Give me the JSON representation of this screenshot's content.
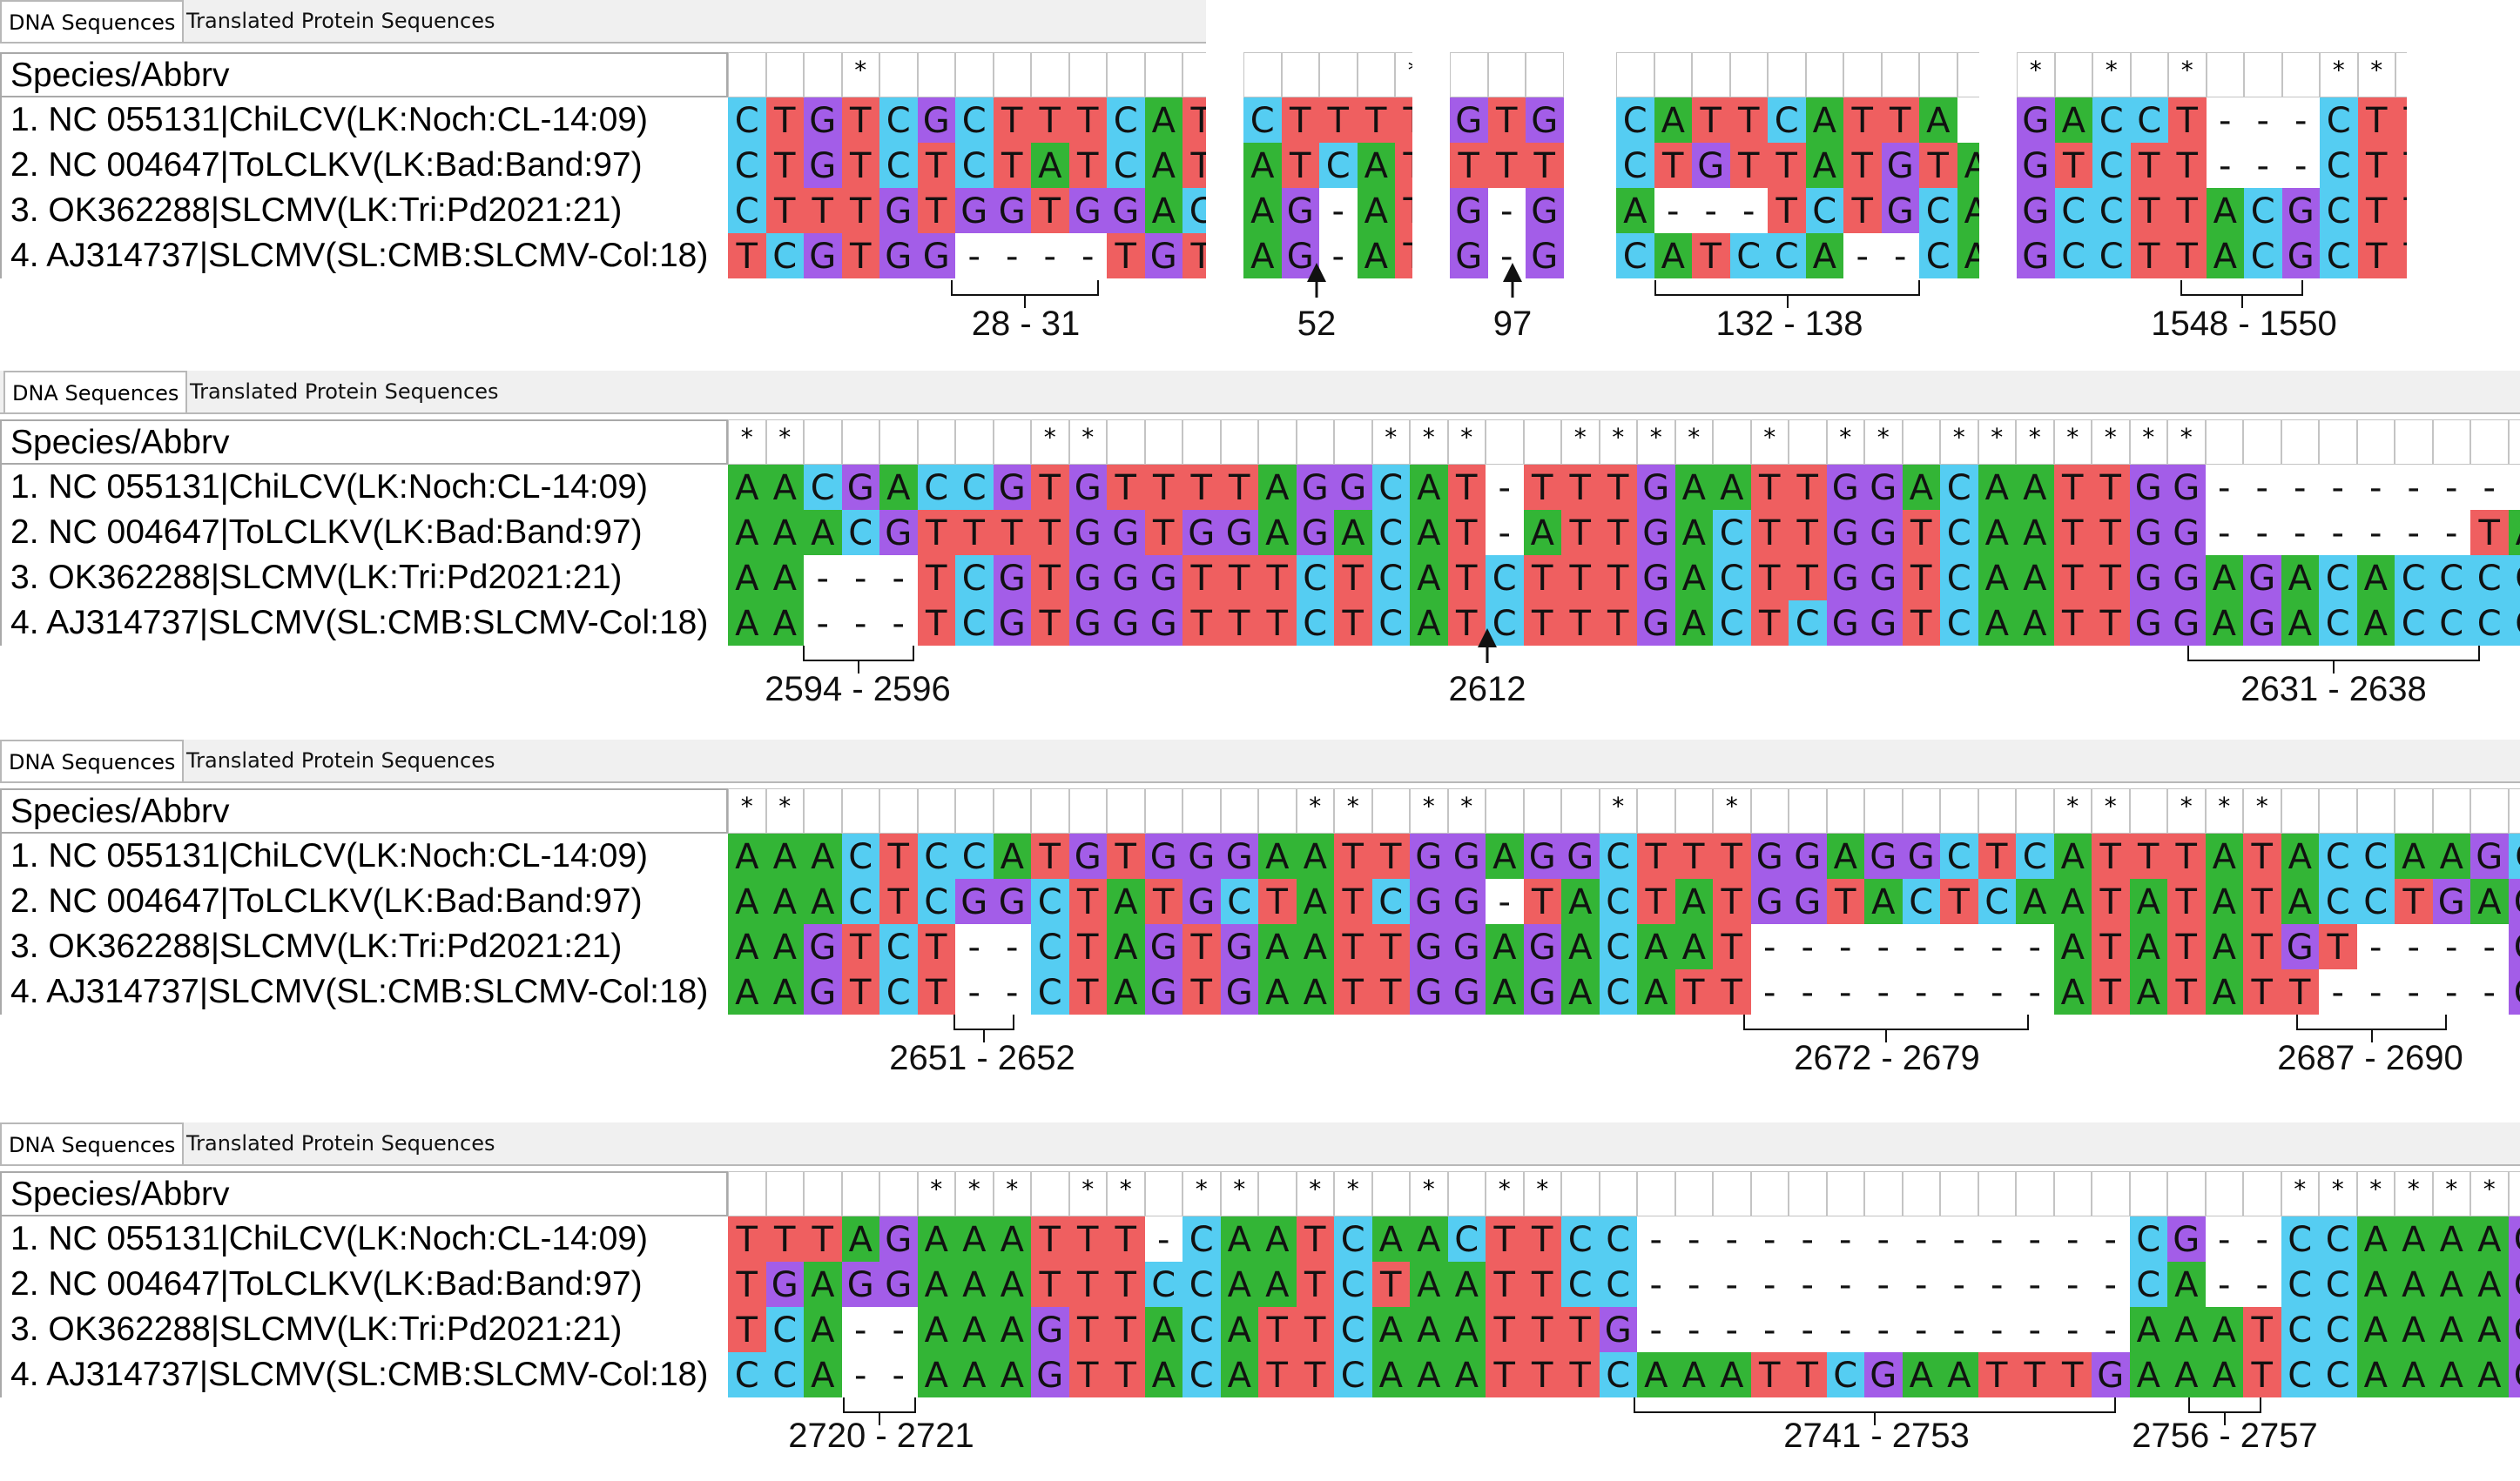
{
  "tabs": {
    "dna": "DNA Sequences",
    "protein": "Translated Protein Sequences"
  },
  "header_label": "Species/Abbrv",
  "species": [
    "1. NC 055131|ChiLCV(LK:Noch:CL-14:09)",
    "2. NC 004647|ToLCLKV(LK:Bad:Band:97)",
    "3. OK362288|SLCMV(LK:Tri:Pd2021:21)",
    "4. AJ314737|SLCMV(SL:CMB:SLCMV-Col:18)"
  ],
  "colors": {
    "A": "#33b536",
    "C": "#55cdf2",
    "G": "#a35de8",
    "T": "#ef5f60",
    "gap": "#ffffff"
  },
  "panels": [
    {
      "segments": [
        {
          "cons": "   *      ",
          "rows": [
            "CTGTCGCTTTCAT",
            "CTGTCTCTATCAT",
            "CTTTGTGGTGGAC",
            "TCGTGG----TGT"
          ]
        },
        {
          "cons": "     *",
          "rows": [
            "CTTTT",
            "ATCAT",
            "AG-AT",
            "AG-AT"
          ]
        },
        {
          "cons": "",
          "rows": [
            "GTG",
            "TTT",
            "G-G",
            "G-G"
          ]
        },
        {
          "cons": "",
          "rows": [
            "CATTCATTA",
            "CTGTTATGTA",
            "A---TCTGCA",
            "CATCCA--CA"
          ]
        },
        {
          "cons": "",
          "rows": [
            "GACCT---CTT",
            "GTCTT---CTT",
            "GCCTTACGCTT",
            "GCCTTACGCTT"
          ]
        }
      ],
      "annotations": [
        "28 - 31",
        "52",
        "97",
        "132 - 138",
        "1548 - 1550"
      ]
    },
    {
      "rows": [
        "AACGACCGTGTTTTAGGCAT-TTTGAATTGGACAATTGG---------C",
        "AAACGTTTTGGTGGAGACAT-ATTGACTTGGTCAATTGG-------TAC",
        "AA---TCGTGGGTTTCTCATCTTTGACTTGGTCAATTGGAGACACCCC",
        "AA---TCGTGGGTTTCTCATCTTTGACTCGGTCAATTGGAGACACCCC"
      ],
      "annotations": [
        "2594 - 2596",
        "2612",
        "2631 - 2638"
      ]
    },
    {
      "rows": [
        "AAACTCCATGTGGGAATTGGAGGCTTTGGAGGCTCATTTATACCAAGC",
        "AAACTCGGCTATGCTATCGG-TACTATGGTACTCAATATATACCTGAG",
        "AAGTCT--CTAGTGAATTGGAGACAAT--------ATATATGT----GT",
        "AAGTCT--CTAGTGAATTGGAGACATT--------ATATATT-----GT"
      ],
      "annotations": [
        "2651 - 2652",
        "2672 - 2679",
        "2687 - 2690"
      ]
    },
    {
      "rows": [
        "TTTAGAAATTT-CAATCAACTTCC-------------CG--CCAAAAG",
        "TGAGGAAATTTCCAATCTAATTCC-------------CA--CCAAAAG",
        "TCA--AAAGTTACATTCAAATTTG-------------AAATCCAAAAG",
        "CCA--AAAGTTACATTCAAATTTCAAATTCGAATTTGAAATCCAAAAG"
      ],
      "annotations": [
        "2720 - 2721",
        "2741 - 2753",
        "2756 - 2757"
      ]
    }
  ]
}
